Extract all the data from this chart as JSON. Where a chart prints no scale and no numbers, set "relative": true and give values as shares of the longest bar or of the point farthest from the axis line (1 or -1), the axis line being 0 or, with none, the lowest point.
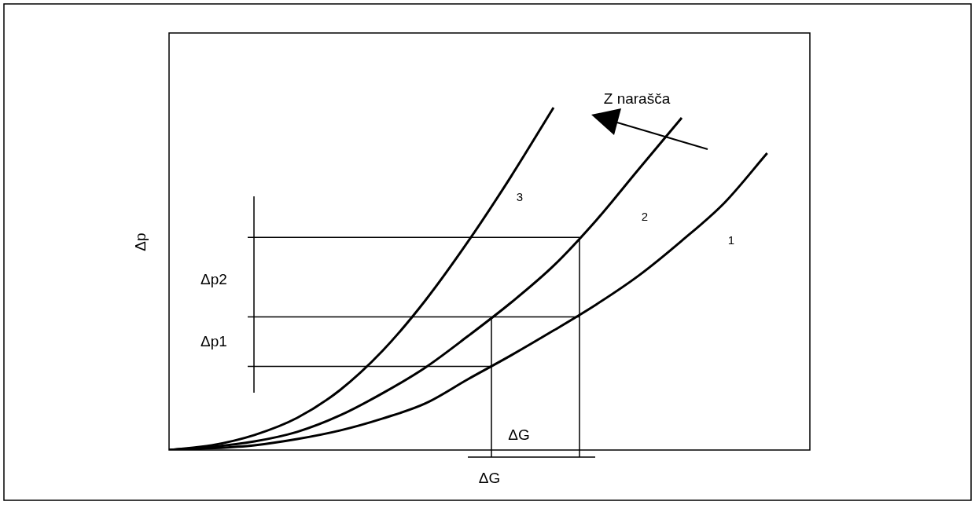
{
  "chart_data": {
    "type": "line",
    "relative": true,
    "xlabel": "ΔG",
    "ylabel": "Δp",
    "categories": [
      null,
      null,
      null,
      null,
      null,
      null,
      null,
      null,
      null,
      null,
      null,
      null,
      null,
      null,
      null,
      null
    ],
    "series": [
      {
        "name": "1",
        "color": "#000000",
        "values": [
          0,
          0.005,
          0.014,
          0.032,
          0.057,
          0.092,
          0.136,
          0.207,
          0.276,
          0.349,
          0.425,
          0.51,
          0.611,
          0.722,
          0.867,
          null
        ]
      },
      {
        "name": "2",
        "color": "#000000",
        "values": [
          0,
          0.009,
          0.025,
          0.053,
          0.101,
          0.166,
          0.241,
          0.333,
          0.43,
          0.538,
          0.671,
          0.821,
          0.97,
          null,
          null,
          null
        ]
      },
      {
        "name": "3",
        "color": "#000000",
        "values": [
          0,
          0.014,
          0.044,
          0.094,
          0.175,
          0.29,
          0.437,
          0.609,
          0.798,
          1,
          null,
          null,
          null,
          null,
          null,
          null
        ]
      }
    ],
    "annotations": [
      "Z narašča",
      "Δp2",
      "Δp1",
      "ΔG"
    ],
    "ref_lines": [
      {
        "axis": "y",
        "value": 0.621
      },
      {
        "axis": "y",
        "value": 0.389
      },
      {
        "axis": "y",
        "value": 0.244
      }
    ],
    "legend": false,
    "marker": "none",
    "line_style": "solid"
  }
}
